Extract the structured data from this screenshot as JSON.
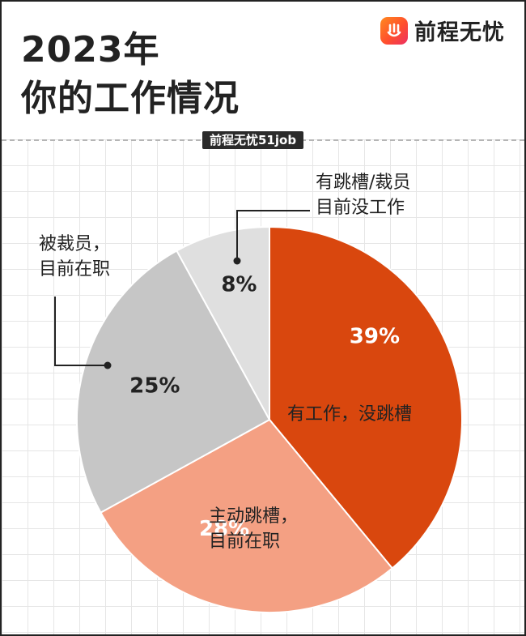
{
  "header": {
    "title_line1": "2023年",
    "title_line2": "你的工作情况",
    "brand_name": "前程无忧",
    "source_tag": "前程无忧51job"
  },
  "chart_data": {
    "type": "pie",
    "title": "2023年 你的工作情况",
    "slices": [
      {
        "label": "有工作，没跳槽",
        "value": 39,
        "value_label": "39%",
        "color": "#d9470e"
      },
      {
        "label": "主动跳槽，目前在职",
        "value": 28,
        "value_label": "28%",
        "color": "#f4a083"
      },
      {
        "label": "被裁员，目前在职",
        "value": 25,
        "value_label": "25%",
        "color": "#c6c6c6"
      },
      {
        "label": "有跳槽/裁员目前没工作",
        "value": 8,
        "value_label": "8%",
        "color": "#dfdfdf"
      }
    ]
  },
  "callouts": {
    "laid_off_line1": "被裁员，",
    "laid_off_line2": "目前在职",
    "jobless_line1": "有跳槽/裁员",
    "jobless_line2": "目前没工作",
    "no_change": "有工作，没跳槽",
    "quit_line1": "主动跳槽，",
    "quit_line2": "目前在职"
  },
  "brand_logo_icon": "smile-hand-logo-icon"
}
